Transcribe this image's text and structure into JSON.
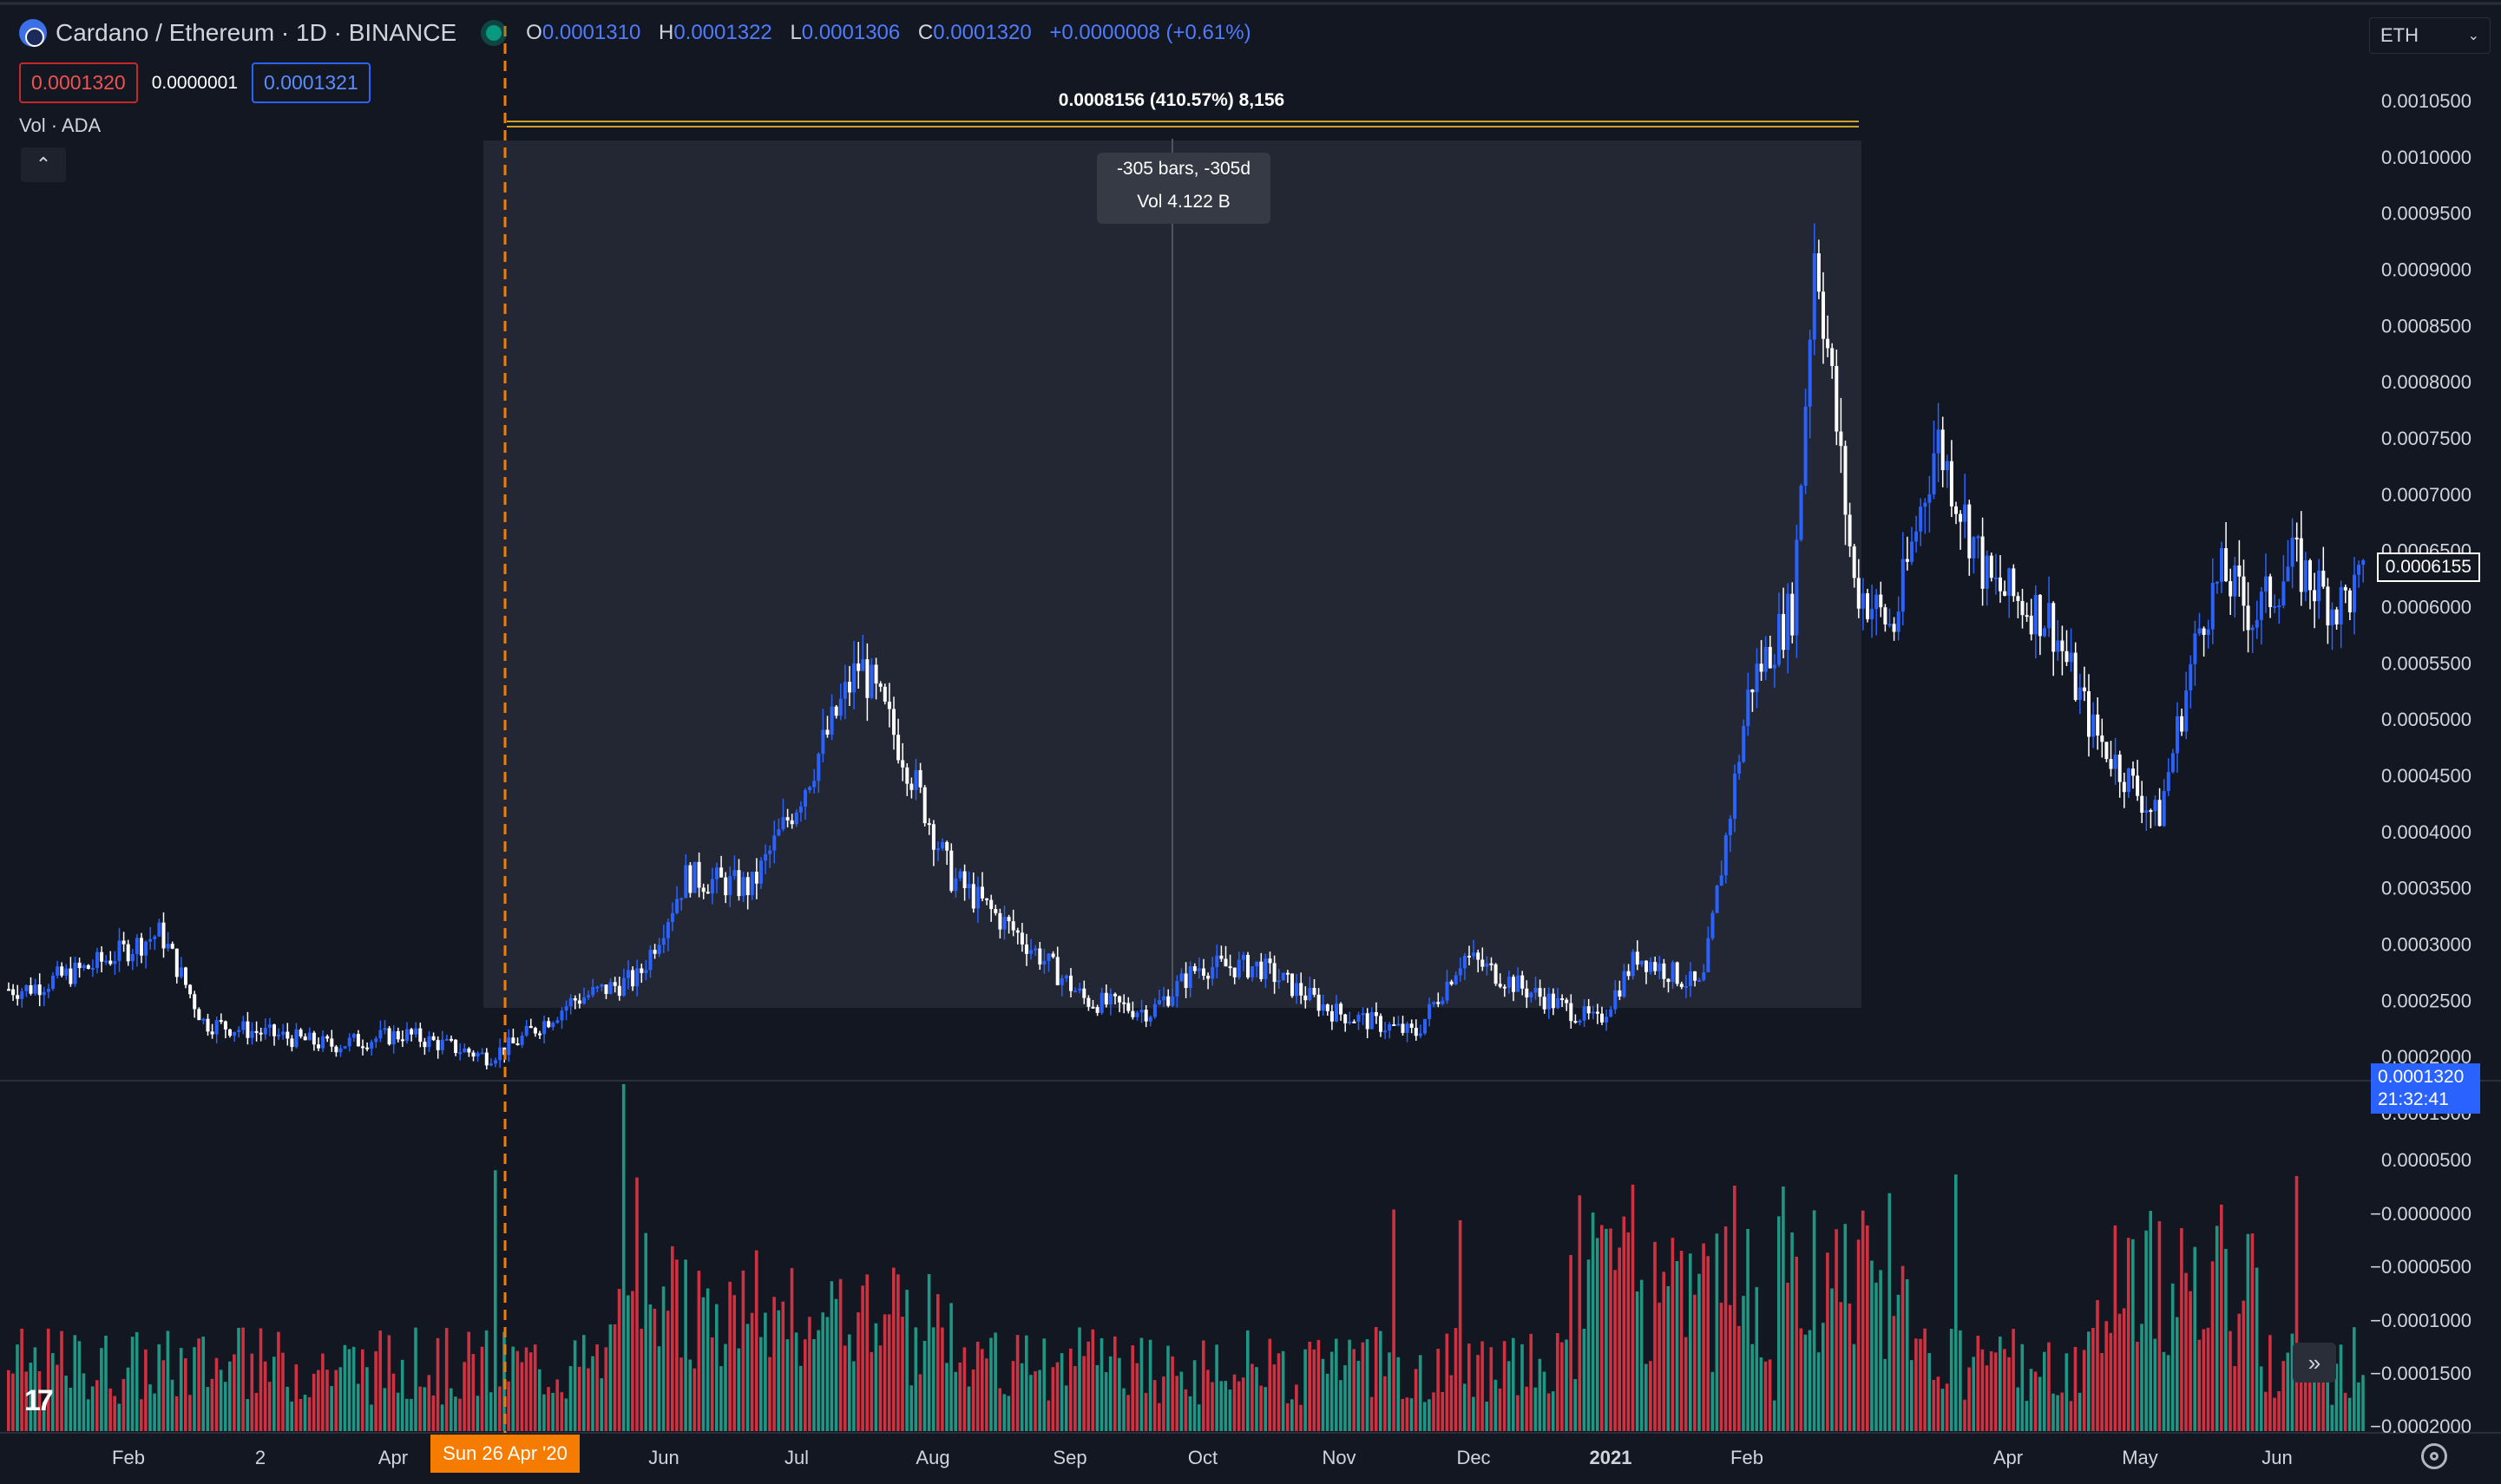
{
  "header": {
    "title": "Cardano / Ethereum · 1D · BINANCE",
    "ohlc": [
      {
        "key": "O",
        "value": "0.0001310"
      },
      {
        "key": "H",
        "value": "0.0001322"
      },
      {
        "key": "L",
        "value": "0.0001306"
      },
      {
        "key": "C",
        "value": "0.0001320"
      }
    ],
    "change": "+0.0000008 (+0.61%)"
  },
  "quotes": {
    "sell": "0.0001320",
    "spread": "0.0000001",
    "buy": "0.0001321"
  },
  "volume_indicator": {
    "label": "Vol · ADA"
  },
  "currency_select": {
    "value": "ETH"
  },
  "measure": {
    "range_label": "0.0008156 (410.57%) 8,156",
    "bars": "-305 bars, -305d",
    "volume": "Vol 4.122 B"
  },
  "price_axis": {
    "labels": [
      "0.0010500",
      "0.0010000",
      "0.0009500",
      "0.0009000",
      "0.0008500",
      "0.0008000",
      "0.0007500",
      "0.0007000",
      "0.0006500",
      "0.0006000",
      "0.0005500",
      "0.0005000",
      "0.0004500",
      "0.0004000",
      "0.0003500",
      "0.0003000",
      "0.0002500",
      "0.0002000",
      "0.0001500"
    ],
    "current_price": "0.0006155"
  },
  "volume_axis": {
    "labels": [
      "0.0000500",
      "−0.0000000",
      "−0.0000500",
      "−0.0001000",
      "−0.0001500",
      "−0.0002000"
    ],
    "last_value": "0.0001320",
    "countdown": "21:32:41"
  },
  "time_axis": {
    "labels": [
      "Feb",
      "2",
      "Apr",
      "Jun",
      "Jul",
      "Aug",
      "Sep",
      "Oct",
      "Nov",
      "Dec",
      "2021",
      "Feb",
      "Apr",
      "May",
      "Jun"
    ],
    "crosshair_date": "Sun 26 Apr '20"
  },
  "colors": {
    "background": "#131722",
    "up": "#2962ff",
    "down": "#ffffff",
    "vol_up": "#22ab94",
    "vol_down": "#f23645",
    "crosshair": "#f57c00"
  },
  "chart_data": {
    "type": "line",
    "title": "",
    "xlabel": "",
    "ylabel": "",
    "ylim": [
      0.00015,
      0.00105
    ],
    "x": [
      "2020-01-05",
      "2020-01-20",
      "2020-02-05",
      "2020-02-15",
      "2020-03-01",
      "2020-03-15",
      "2020-04-01",
      "2020-04-20",
      "2020-04-26",
      "2020-05-10",
      "2020-05-25",
      "2020-06-05",
      "2020-06-20",
      "2020-07-01",
      "2020-07-15",
      "2020-07-25",
      "2020-08-05",
      "2020-08-20",
      "2020-09-05",
      "2020-09-20",
      "2020-10-01",
      "2020-10-15",
      "2020-11-01",
      "2020-11-20",
      "2020-12-01",
      "2020-12-15",
      "2021-01-01",
      "2021-01-10",
      "2021-01-25",
      "2021-02-05",
      "2021-02-15",
      "2021-02-20",
      "2021-03-01",
      "2021-03-10",
      "2021-03-20",
      "2021-04-01",
      "2021-04-15",
      "2021-04-25",
      "2021-05-10",
      "2021-05-20",
      "2021-05-25",
      "2021-06-01",
      "2021-06-10",
      "2021-06-20",
      "2021-06-26"
    ],
    "series": [
      {
        "values": [
          0.00026,
          0.00028,
          0.00031,
          0.00023,
          0.00022,
          0.00021,
          0.00022,
          0.0002,
          0.00021,
          0.00025,
          0.00027,
          0.00036,
          0.00035,
          0.00043,
          0.00055,
          0.00047,
          0.00036,
          0.00031,
          0.00025,
          0.00024,
          0.00028,
          0.00028,
          0.00024,
          0.00022,
          0.00029,
          0.00026,
          0.00023,
          0.00029,
          0.00026,
          0.00053,
          0.0006,
          0.00093,
          0.00062,
          0.00058,
          0.00075,
          0.00062,
          0.00059,
          0.00049,
          0.00041,
          0.00059,
          0.00063,
          0.00059,
          0.00064,
          0.0006,
          0.00062
        ]
      }
    ]
  }
}
